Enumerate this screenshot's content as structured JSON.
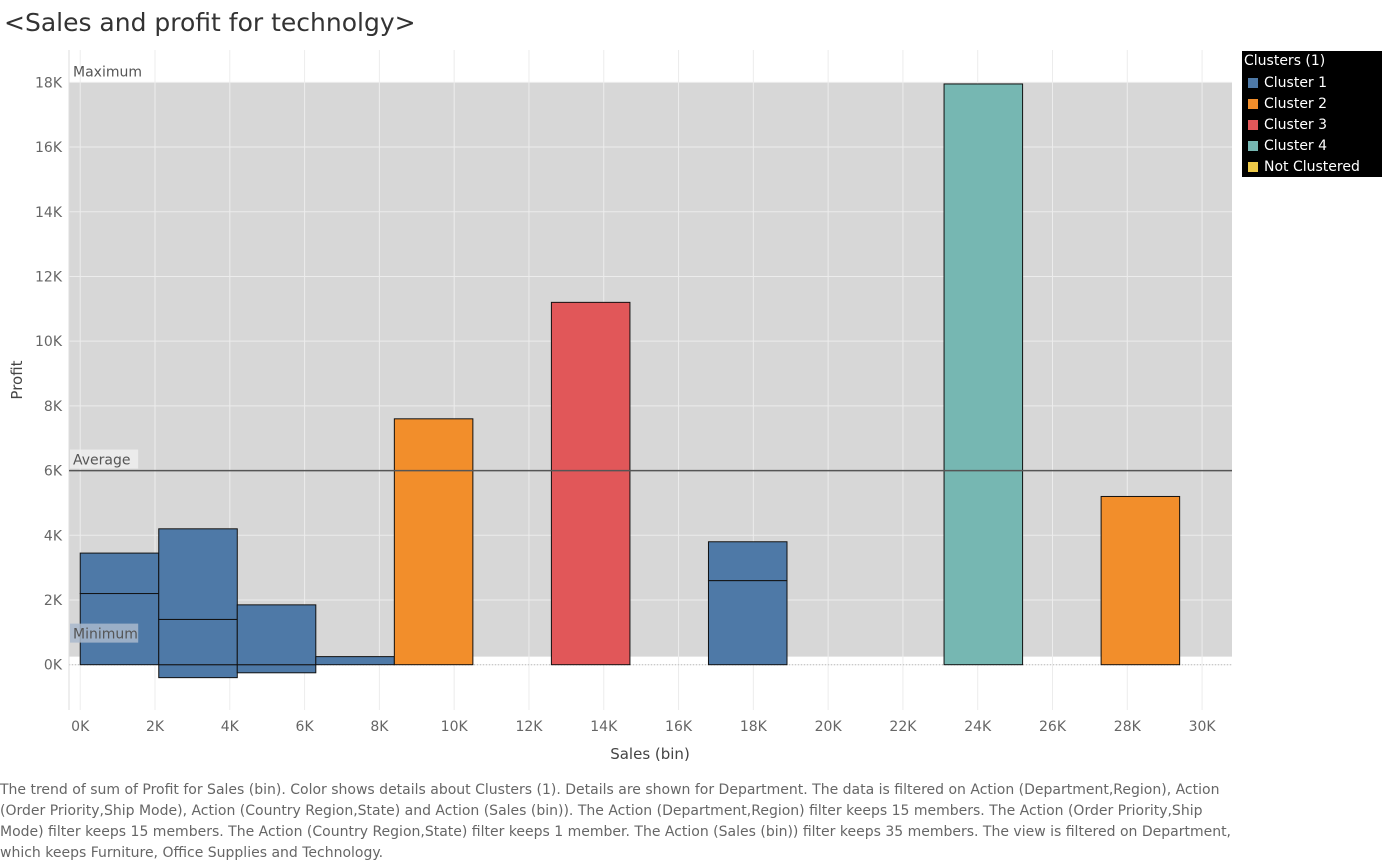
{
  "title": "<Sales and profit for technolgy>",
  "caption": "The trend of sum of Profit for Sales (bin).  Color shows details about Clusters (1).  Details are shown for Department. The data is filtered on Action (Department,Region), Action (Order Priority,Ship Mode), Action (Country Region,State) and Action (Sales (bin)). The Action (Department,Region) filter keeps 15 members. The Action (Order Priority,Ship Mode) filter keeps 15 members. The Action (Country Region,State) filter keeps 1 member. The Action (Sales (bin)) filter keeps 35 members. The view is filtered on Department, which keeps Furniture, Office Supplies and Technology.",
  "legend": {
    "title": "Clusters (1)",
    "items": [
      {
        "label": "Cluster 1",
        "color": "#4e79a7"
      },
      {
        "label": "Cluster 2",
        "color": "#f28e2b"
      },
      {
        "label": "Cluster 3",
        "color": "#e15759"
      },
      {
        "label": "Cluster 4",
        "color": "#76b7b2"
      },
      {
        "label": "Not Clustered",
        "color": "#edc948"
      }
    ]
  },
  "chart_data": {
    "type": "bar",
    "title": "<Sales and profit for technolgy>",
    "xlabel": "Sales (bin)",
    "ylabel": "Profit",
    "xlim": [
      -300,
      30800
    ],
    "ylim": [
      -1400,
      19000
    ],
    "x_ticks": [
      0,
      2000,
      4000,
      6000,
      8000,
      10000,
      12000,
      14000,
      16000,
      18000,
      20000,
      22000,
      24000,
      26000,
      28000,
      30000
    ],
    "x_tick_labels": [
      "0K",
      "2K",
      "4K",
      "6K",
      "8K",
      "10K",
      "12K",
      "14K",
      "16K",
      "18K",
      "20K",
      "22K",
      "24K",
      "26K",
      "28K",
      "30K"
    ],
    "y_ticks": [
      0,
      2000,
      4000,
      6000,
      8000,
      10000,
      12000,
      14000,
      16000,
      18000
    ],
    "y_tick_labels": [
      "0K",
      "2K",
      "4K",
      "6K",
      "8K",
      "10K",
      "12K",
      "14K",
      "16K",
      "18K"
    ],
    "bin_width": 2100,
    "bars": [
      {
        "x": 0,
        "segments": [
          2200,
          1250
        ],
        "cluster": "Cluster 1"
      },
      {
        "x": 2100,
        "segments": [
          -400,
          1400,
          2800
        ],
        "cluster": "Cluster 1"
      },
      {
        "x": 4200,
        "segments": [
          -250,
          1850
        ],
        "cluster": "Cluster 1"
      },
      {
        "x": 6300,
        "segments": [
          250
        ],
        "cluster": "Cluster 1"
      },
      {
        "x": 8400,
        "segments": [
          7600
        ],
        "cluster": "Cluster 2"
      },
      {
        "x": 12600,
        "segments": [
          11200
        ],
        "cluster": "Cluster 3"
      },
      {
        "x": 16800,
        "segments": [
          2600,
          1200
        ],
        "cluster": "Cluster 1"
      },
      {
        "x": 23100,
        "segments": [
          17950
        ],
        "cluster": "Cluster 4"
      },
      {
        "x": 27300,
        "segments": [
          5200
        ],
        "cluster": "Cluster 2"
      }
    ],
    "reference_lines": [
      {
        "label": "Average",
        "value": 6000
      },
      {
        "label": "Maximum",
        "value": 18000
      },
      {
        "label": "Minimum",
        "value": 250
      }
    ],
    "grid": true,
    "legend_position": "right"
  }
}
